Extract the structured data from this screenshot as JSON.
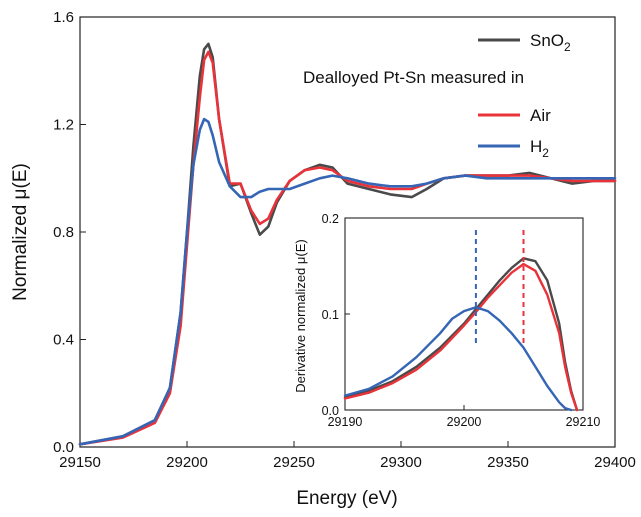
{
  "chart_data": [
    {
      "type": "line",
      "xlabel": "Energy (eV)",
      "ylabel": "Normalized μ(E)",
      "xlim": [
        29150,
        29400
      ],
      "ylim": [
        0,
        1.6
      ],
      "x_ticks": [
        "29150",
        "29200",
        "29250",
        "29300",
        "29350",
        "29400"
      ],
      "y_ticks": [
        "0.0",
        "0.4",
        "0.8",
        "1.2",
        "1.6"
      ],
      "legend": {
        "placement": "top-right",
        "header": "Dealloyed Pt-Sn measured in",
        "entries": [
          {
            "text": "SnO",
            "sub": "2",
            "color": "#4a4a4a"
          },
          {
            "text": "Air",
            "sub": "",
            "color": "#e8333a"
          },
          {
            "text": "H",
            "sub": "2",
            "color": "#3566b5"
          }
        ]
      },
      "series": [
        {
          "color": "#4a4a4a",
          "x": [
            29150,
            29170,
            29185,
            29192,
            29197,
            29200,
            29203,
            29206,
            29208,
            29210,
            29212,
            29215,
            29220,
            29225,
            29230,
            29234,
            29238,
            29242,
            29248,
            29255,
            29262,
            29268,
            29275,
            29285,
            29295,
            29305,
            29312,
            29320,
            29330,
            29340,
            29350,
            29360,
            29370,
            29380,
            29390,
            29400
          ],
          "y": [
            0.01,
            0.04,
            0.1,
            0.22,
            0.5,
            0.8,
            1.12,
            1.38,
            1.48,
            1.5,
            1.45,
            1.22,
            0.97,
            0.98,
            0.87,
            0.79,
            0.82,
            0.91,
            0.99,
            1.03,
            1.05,
            1.04,
            0.98,
            0.96,
            0.94,
            0.93,
            0.96,
            1.0,
            1.01,
            1.01,
            1.01,
            1.02,
            1.0,
            0.98,
            0.99,
            0.99
          ]
        },
        {
          "color": "#e8333a",
          "x": [
            29150,
            29170,
            29185,
            29192,
            29197,
            29200,
            29203,
            29206,
            29208,
            29210,
            29212,
            29215,
            29220,
            29225,
            29230,
            29234,
            29238,
            29242,
            29248,
            29255,
            29262,
            29268,
            29275,
            29285,
            29295,
            29305,
            29312,
            29320,
            29330,
            29340,
            29350,
            29360,
            29370,
            29380,
            29390,
            29400
          ],
          "y": [
            0.01,
            0.035,
            0.09,
            0.2,
            0.45,
            0.75,
            1.05,
            1.3,
            1.44,
            1.47,
            1.43,
            1.22,
            0.98,
            0.98,
            0.88,
            0.83,
            0.85,
            0.92,
            0.99,
            1.03,
            1.04,
            1.03,
            0.99,
            0.97,
            0.96,
            0.96,
            0.98,
            1.0,
            1.01,
            1.01,
            1.01,
            1.01,
            1.0,
            0.99,
            0.99,
            0.99
          ]
        },
        {
          "color": "#3566b5",
          "x": [
            29150,
            29170,
            29185,
            29192,
            29197,
            29200,
            29203,
            29206,
            29208,
            29210,
            29212,
            29215,
            29220,
            29225,
            29230,
            29234,
            29238,
            29242,
            29248,
            29255,
            29262,
            29268,
            29275,
            29285,
            29295,
            29305,
            29312,
            29320,
            29330,
            29340,
            29350,
            29360,
            29370,
            29380,
            29390,
            29400
          ],
          "y": [
            0.01,
            0.04,
            0.1,
            0.22,
            0.5,
            0.8,
            1.05,
            1.18,
            1.22,
            1.21,
            1.16,
            1.06,
            0.97,
            0.93,
            0.93,
            0.95,
            0.96,
            0.96,
            0.96,
            0.98,
            1.0,
            1.01,
            1.0,
            0.98,
            0.97,
            0.97,
            0.98,
            1.0,
            1.01,
            1.0,
            1.0,
            1.0,
            1.0,
            1.0,
            1.0,
            1.0
          ]
        }
      ]
    },
    {
      "type": "line",
      "ylabel": "Derivative normalized μ(E)",
      "xlim": [
        29190,
        29210
      ],
      "ylim": [
        0,
        0.2
      ],
      "x_ticks": [
        "29190",
        "29200",
        "29210"
      ],
      "y_ticks": [
        "0.0",
        "0.1",
        "0.2"
      ],
      "markers": [
        {
          "x": 29201,
          "color": "#3566b5"
        },
        {
          "x": 29205,
          "color": "#e8333a"
        }
      ],
      "series": [
        {
          "color": "#4a4a4a",
          "x": [
            29190,
            29192,
            29194,
            29196,
            29198,
            29200,
            29201,
            29202,
            29203,
            29204,
            29205,
            29206,
            29207,
            29208,
            29208.5,
            29209,
            29209.5
          ],
          "y": [
            0.013,
            0.02,
            0.03,
            0.045,
            0.065,
            0.09,
            0.105,
            0.12,
            0.135,
            0.148,
            0.158,
            0.155,
            0.135,
            0.09,
            0.05,
            0.02,
            0.0
          ]
        },
        {
          "color": "#e8333a",
          "x": [
            29190,
            29192,
            29194,
            29196,
            29198,
            29200,
            29201,
            29202,
            29203,
            29204,
            29205,
            29206,
            29207,
            29208,
            29208.5,
            29209,
            29209.5
          ],
          "y": [
            0.012,
            0.018,
            0.028,
            0.042,
            0.062,
            0.088,
            0.102,
            0.117,
            0.13,
            0.143,
            0.152,
            0.145,
            0.12,
            0.08,
            0.045,
            0.018,
            0.0
          ]
        },
        {
          "color": "#3566b5",
          "x": [
            29190,
            29192,
            29194,
            29196,
            29198,
            29199,
            29200,
            29201,
            29202,
            29203,
            29204,
            29205,
            29206,
            29207,
            29208,
            29208.5,
            29209
          ],
          "y": [
            0.015,
            0.022,
            0.035,
            0.055,
            0.08,
            0.095,
            0.103,
            0.107,
            0.103,
            0.093,
            0.08,
            0.065,
            0.045,
            0.025,
            0.008,
            0.002,
            0.0
          ]
        }
      ]
    }
  ]
}
